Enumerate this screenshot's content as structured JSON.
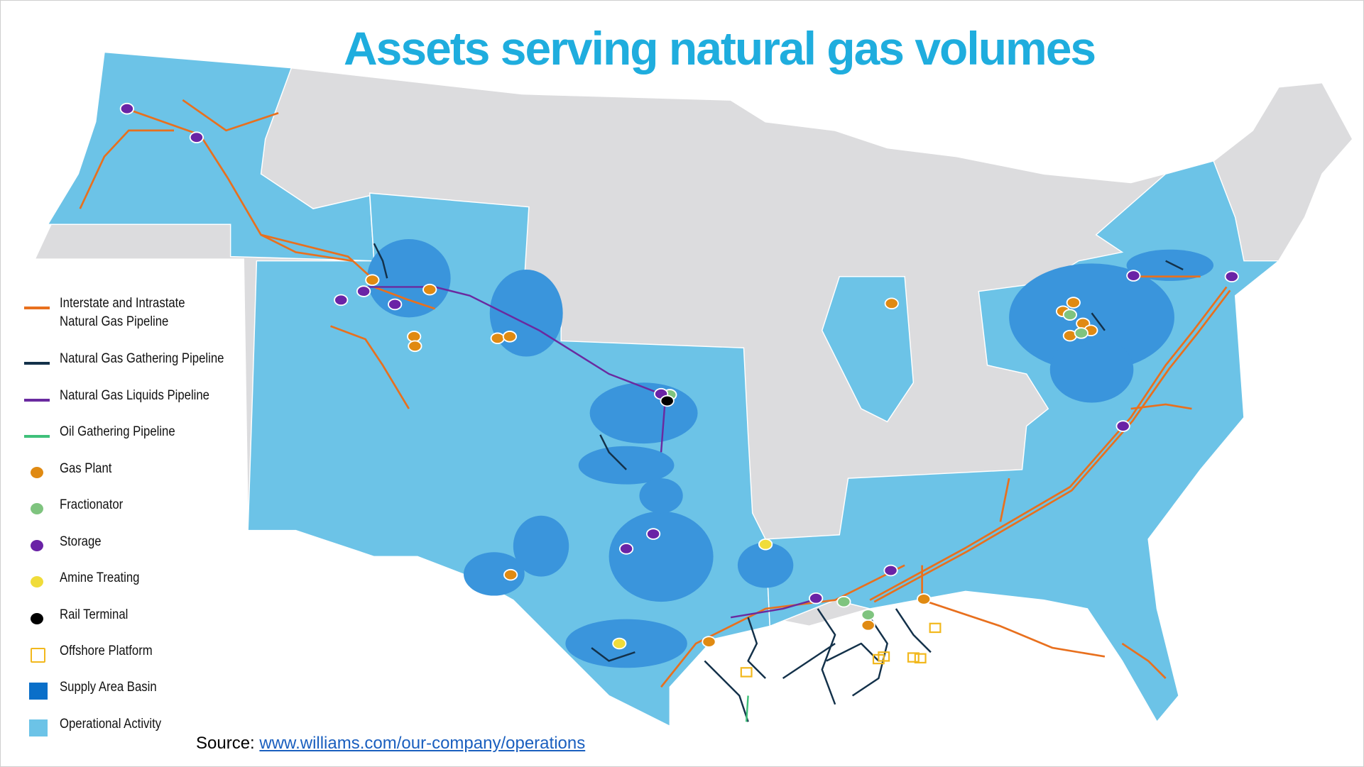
{
  "title": "Assets serving natural gas volumes",
  "colors": {
    "title": "#1fadde",
    "land": "#dcdcde",
    "operational_activity": "#6cc3e7",
    "supply_area_basin": "#3a95dc",
    "interstate_pipeline": "#e8701e",
    "gathering_pipeline": "#13314a",
    "ngl_pipeline": "#6a2aa0",
    "oil_gathering": "#3fc07a",
    "gas_plant": "#e08a12",
    "fractionator": "#7fc47f",
    "storage": "#6a23a6",
    "amine_treating": "#f0dc3a",
    "rail_terminal": "#000000",
    "offshore_platform": "#f2b81d"
  },
  "legend": [
    {
      "label": "Interstate and Intrastate\nNatural Gas Pipeline",
      "line1": "Interstate and Intrastate",
      "line2": "Natural Gas Pipeline",
      "symbol": "line",
      "color": "#e8701e"
    },
    {
      "label": "Natural Gas Gathering Pipeline",
      "symbol": "line",
      "color": "#13314a"
    },
    {
      "label": "Natural Gas Liquids Pipeline",
      "symbol": "line",
      "color": "#6a2aa0"
    },
    {
      "label": "Oil Gathering Pipeline",
      "symbol": "line",
      "color": "#3fc07a"
    },
    {
      "label": "Gas Plant",
      "symbol": "dot",
      "color": "#e08a12"
    },
    {
      "label": "Fractionator",
      "symbol": "dot",
      "color": "#7fc47f"
    },
    {
      "label": "Storage",
      "symbol": "dot",
      "color": "#6a23a6"
    },
    {
      "label": "Amine Treating",
      "symbol": "dot",
      "color": "#f0dc3a"
    },
    {
      "label": "Rail Terminal",
      "symbol": "dot",
      "color": "#000000"
    },
    {
      "label": "Offshore Platform",
      "symbol": "open-square",
      "color": "#f2b81d"
    },
    {
      "label": "Supply Area Basin",
      "symbol": "square",
      "color": "#0a6fc9"
    },
    {
      "label": "Operational Activity",
      "symbol": "square",
      "color": "#6cc3e7"
    }
  ],
  "source": {
    "prefix": "Source: ",
    "link_text": "www.williams.com/our-company/operations"
  }
}
